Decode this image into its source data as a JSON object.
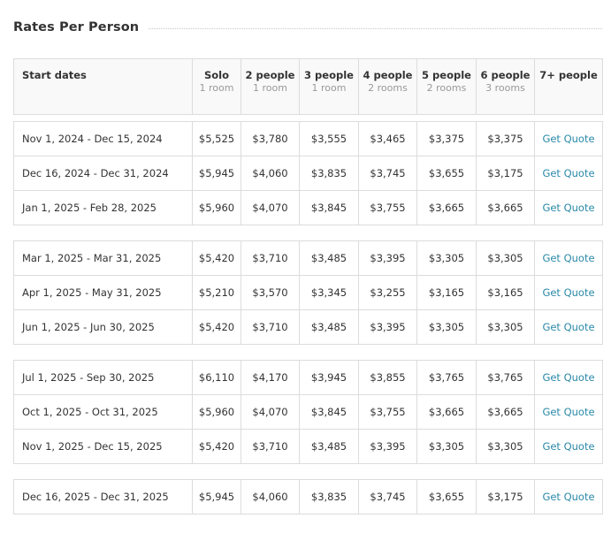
{
  "section": {
    "title": "Rates Per Person"
  },
  "colors": {
    "quote_link": "#2a89a8",
    "border": "#dcdcdc",
    "header_bg": "#f9f9f9"
  },
  "header": {
    "start_dates": "Start dates",
    "columns": [
      {
        "label": "Solo",
        "sub": "1 room"
      },
      {
        "label": "2 people",
        "sub": "1 room"
      },
      {
        "label": "3 people",
        "sub": "1 room"
      },
      {
        "label": "4 people",
        "sub": "2 rooms"
      },
      {
        "label": "5 people",
        "sub": "2 rooms"
      },
      {
        "label": "6 people",
        "sub": "3 rooms"
      },
      {
        "label": "7+ people",
        "sub": ""
      }
    ]
  },
  "groups": [
    {
      "rows": [
        {
          "dates": "Nov 1, 2024 - Dec 15, 2024",
          "prices": [
            "$5,525",
            "$3,780",
            "$3,555",
            "$3,465",
            "$3,375",
            "$3,375"
          ],
          "quote": "Get Quote"
        },
        {
          "dates": "Dec 16, 2024 - Dec 31, 2024",
          "prices": [
            "$5,945",
            "$4,060",
            "$3,835",
            "$3,745",
            "$3,655",
            "$3,175"
          ],
          "quote": "Get Quote"
        },
        {
          "dates": "Jan 1, 2025 - Feb 28, 2025",
          "prices": [
            "$5,960",
            "$4,070",
            "$3,845",
            "$3,755",
            "$3,665",
            "$3,665"
          ],
          "quote": "Get Quote"
        }
      ]
    },
    {
      "rows": [
        {
          "dates": "Mar 1, 2025 - Mar 31, 2025",
          "prices": [
            "$5,420",
            "$3,710",
            "$3,485",
            "$3,395",
            "$3,305",
            "$3,305"
          ],
          "quote": "Get Quote"
        },
        {
          "dates": "Apr 1, 2025 - May 31, 2025",
          "prices": [
            "$5,210",
            "$3,570",
            "$3,345",
            "$3,255",
            "$3,165",
            "$3,165"
          ],
          "quote": "Get Quote"
        },
        {
          "dates": "Jun 1, 2025 - Jun 30, 2025",
          "prices": [
            "$5,420",
            "$3,710",
            "$3,485",
            "$3,395",
            "$3,305",
            "$3,305"
          ],
          "quote": "Get Quote"
        }
      ]
    },
    {
      "rows": [
        {
          "dates": "Jul 1, 2025 - Sep 30, 2025",
          "prices": [
            "$6,110",
            "$4,170",
            "$3,945",
            "$3,855",
            "$3,765",
            "$3,765"
          ],
          "quote": "Get Quote"
        },
        {
          "dates": "Oct 1, 2025 - Oct 31, 2025",
          "prices": [
            "$5,960",
            "$4,070",
            "$3,845",
            "$3,755",
            "$3,665",
            "$3,665"
          ],
          "quote": "Get Quote"
        },
        {
          "dates": "Nov 1, 2025 - Dec 15, 2025",
          "prices": [
            "$5,420",
            "$3,710",
            "$3,485",
            "$3,395",
            "$3,305",
            "$3,305"
          ],
          "quote": "Get Quote"
        }
      ]
    },
    {
      "rows": [
        {
          "dates": "Dec 16, 2025 - Dec 31, 2025",
          "prices": [
            "$5,945",
            "$4,060",
            "$3,835",
            "$3,745",
            "$3,655",
            "$3,175"
          ],
          "quote": "Get Quote"
        }
      ]
    }
  ]
}
